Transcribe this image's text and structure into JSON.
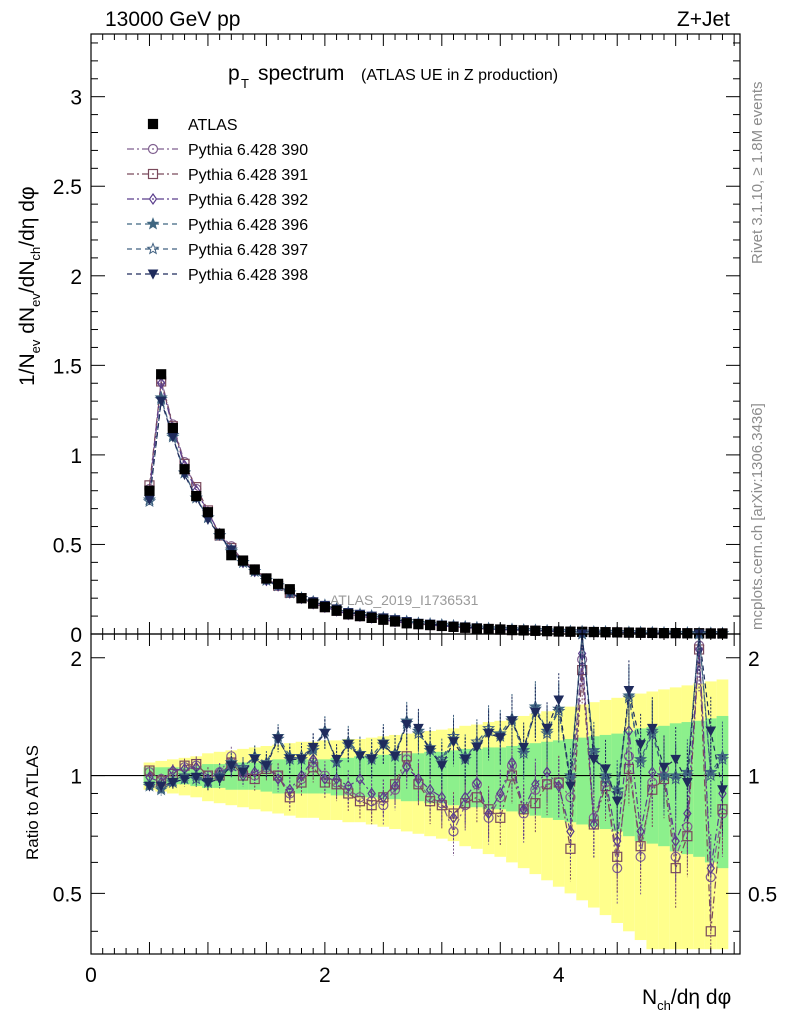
{
  "header": {
    "left": "13000 GeV pp",
    "right": "Z+Jet"
  },
  "side": {
    "rivet": "Rivet 3.1.10, ≥ 1.8M events",
    "mcplots": "mcplots.cern.ch [arXiv:1306.3436]"
  },
  "chart_data": {
    "type": "line",
    "title_main": "p",
    "title_sub": "T",
    "title_rest": "spectrum",
    "title_paren": "(ATLAS UE in Z production)",
    "watermark": "ATLAS_2019_I1736531",
    "ylabel_top": {
      "a": "1/N",
      "a_sub": "ev",
      "b": " dN",
      "b_sub": "ev",
      "c": "/dN",
      "c_sub": "ch",
      "d": "/dη dφ"
    },
    "ylabel_bottom": "Ratio to ATLAS",
    "xlabel": {
      "a": "N",
      "a_sub": "ch",
      "b": "/dη dφ"
    },
    "xlim": [
      0,
      5.55
    ],
    "ylim_top": [
      0,
      3.35
    ],
    "ylim_bottom": [
      0.35,
      2.3
    ],
    "x_ticks": [
      "0",
      "2",
      "4"
    ],
    "y_ticks_top": [
      "0",
      "0.5",
      "1",
      "1.5",
      "2",
      "2.5",
      "3"
    ],
    "y_ticks_bottom": [
      "0.5",
      "1",
      "2"
    ],
    "y_ticks_bottom_right": [
      "0.5",
      "1",
      "2"
    ],
    "x": [
      0.5,
      0.6,
      0.7,
      0.8,
      0.9,
      1.0,
      1.1,
      1.2,
      1.3,
      1.4,
      1.5,
      1.6,
      1.7,
      1.8,
      1.9,
      2.0,
      2.1,
      2.2,
      2.3,
      2.4,
      2.5,
      2.6,
      2.7,
      2.8,
      2.9,
      3.0,
      3.1,
      3.2,
      3.3,
      3.4,
      3.5,
      3.6,
      3.7,
      3.8,
      3.9,
      4.0,
      4.1,
      4.2,
      4.3,
      4.4,
      4.5,
      4.6,
      4.7,
      4.8,
      4.9,
      5.0,
      5.1,
      5.2,
      5.3,
      5.4
    ],
    "data_values": [
      0.8,
      1.45,
      1.15,
      0.92,
      0.77,
      0.68,
      0.56,
      0.44,
      0.41,
      0.36,
      0.31,
      0.28,
      0.25,
      0.2,
      0.17,
      0.15,
      0.13,
      0.11,
      0.1,
      0.09,
      0.08,
      0.07,
      0.06,
      0.055,
      0.05,
      0.045,
      0.04,
      0.035,
      0.03,
      0.028,
      0.025,
      0.022,
      0.02,
      0.018,
      0.016,
      0.014,
      0.013,
      0.012,
      0.011,
      0.01,
      0.009,
      0.008,
      0.007,
      0.006,
      0.005,
      0.005,
      0.004,
      0.004,
      0.003,
      0.003
    ],
    "band_green": [
      0.05,
      0.05,
      0.05,
      0.05,
      0.06,
      0.07,
      0.07,
      0.08,
      0.08,
      0.08,
      0.09,
      0.1,
      0.1,
      0.1,
      0.1,
      0.1,
      0.11,
      0.11,
      0.12,
      0.12,
      0.13,
      0.13,
      0.14,
      0.14,
      0.15,
      0.15,
      0.16,
      0.17,
      0.17,
      0.18,
      0.18,
      0.19,
      0.2,
      0.21,
      0.22,
      0.23,
      0.24,
      0.25,
      0.26,
      0.27,
      0.28,
      0.3,
      0.32,
      0.33,
      0.34,
      0.36,
      0.37,
      0.38,
      0.4,
      0.42
    ],
    "band_yellow": [
      0.08,
      0.09,
      0.1,
      0.11,
      0.12,
      0.14,
      0.15,
      0.16,
      0.17,
      0.18,
      0.19,
      0.2,
      0.21,
      0.22,
      0.22,
      0.23,
      0.23,
      0.24,
      0.24,
      0.25,
      0.26,
      0.27,
      0.28,
      0.29,
      0.3,
      0.31,
      0.32,
      0.34,
      0.35,
      0.37,
      0.38,
      0.4,
      0.42,
      0.44,
      0.46,
      0.48,
      0.5,
      0.52,
      0.54,
      0.56,
      0.58,
      0.6,
      0.62,
      0.64,
      0.66,
      0.68,
      0.7,
      0.72,
      0.74,
      0.76
    ],
    "legend": [
      {
        "name": "ATLAS",
        "marker": "filled-square",
        "color": "#000000"
      },
      {
        "name": "Pythia 6.428 390",
        "marker": "open-circle",
        "color": "#7f5f8f",
        "dash": "7 3 2 3"
      },
      {
        "name": "Pythia 6.428 391",
        "marker": "open-square",
        "color": "#7a4a5c",
        "dash": "7 3 2 3"
      },
      {
        "name": "Pythia 6.428 392",
        "marker": "open-diamond",
        "color": "#5a3d8c",
        "dash": "7 3 2 3"
      },
      {
        "name": "Pythia 6.428 396",
        "marker": "filled-star",
        "color": "#3f6680",
        "dash": "5 4"
      },
      {
        "name": "Pythia 6.428 397",
        "marker": "open-star",
        "color": "#406080",
        "dash": "5 4"
      },
      {
        "name": "Pythia 6.428 398",
        "marker": "filled-triangle-down",
        "color": "#1f2b5c",
        "dash": "5 4"
      }
    ],
    "series": [
      {
        "name": "Pythia 6.428 390",
        "values": [
          0.81,
          1.42,
          1.17,
          0.96,
          0.81,
          0.68,
          0.56,
          0.49,
          0.41,
          0.36,
          0.31,
          0.27,
          0.23,
          0.2,
          0.18,
          0.15,
          0.13,
          0.11,
          0.1,
          0.09,
          0.08,
          0.07,
          0.06,
          0.055,
          0.05,
          0.045,
          0.04,
          0.035,
          0.03,
          0.028,
          0.025,
          0.022,
          0.02,
          0.018,
          0.016,
          0.014,
          0.013,
          0.012,
          0.011,
          0.01,
          0.009,
          0.008,
          0.007,
          0.006,
          0.005,
          0.005,
          0.004,
          0.004,
          0.003,
          0.003
        ],
        "ratio": [
          1.02,
          0.98,
          1.02,
          1.05,
          1.06,
          1.0,
          1.02,
          1.12,
          1.02,
          1.0,
          1.05,
          1.0,
          0.9,
          0.98,
          1.08,
          1.0,
          0.96,
          0.92,
          0.88,
          0.86,
          0.84,
          0.92,
          1.1,
          0.96,
          0.88,
          0.85,
          0.72,
          0.84,
          0.95,
          0.78,
          0.88,
          1.06,
          0.8,
          0.92,
          0.95,
          0.96,
          0.88,
          1.98,
          0.78,
          0.96,
          0.58,
          1.12,
          0.62,
          0.96,
          1.04,
          0.62,
          0.74,
          2.15,
          0.55,
          0.8
        ]
      },
      {
        "name": "Pythia 6.428 391",
        "values": [
          0.83,
          1.41,
          1.16,
          0.95,
          0.82,
          0.69,
          0.55,
          0.48,
          0.41,
          0.36,
          0.31,
          0.27,
          0.23,
          0.2,
          0.17,
          0.15,
          0.13,
          0.11,
          0.1,
          0.09,
          0.08,
          0.07,
          0.06,
          0.055,
          0.05,
          0.045,
          0.04,
          0.035,
          0.03,
          0.028,
          0.025,
          0.022,
          0.02,
          0.018,
          0.016,
          0.014,
          0.013,
          0.012,
          0.011,
          0.01,
          0.009,
          0.008,
          0.007,
          0.006,
          0.005,
          0.005,
          0.004,
          0.004,
          0.003,
          0.003
        ],
        "ratio": [
          1.03,
          0.97,
          1.01,
          1.06,
          1.07,
          1.0,
          1.0,
          1.08,
          1.0,
          0.98,
          1.04,
          1.0,
          0.88,
          0.96,
          1.05,
          0.96,
          0.95,
          0.9,
          0.86,
          0.84,
          0.88,
          0.95,
          1.12,
          0.95,
          0.86,
          0.84,
          0.8,
          0.85,
          0.88,
          0.82,
          0.78,
          1.0,
          0.82,
          0.85,
          0.95,
          0.96,
          0.65,
          1.86,
          0.75,
          0.94,
          0.62,
          1.04,
          0.66,
          0.92,
          0.98,
          0.58,
          0.7,
          2.1,
          0.4,
          0.82
        ]
      },
      {
        "name": "Pythia 6.428 392",
        "values": [
          0.79,
          1.4,
          1.15,
          0.94,
          0.8,
          0.68,
          0.56,
          0.47,
          0.4,
          0.35,
          0.3,
          0.27,
          0.23,
          0.2,
          0.17,
          0.15,
          0.13,
          0.11,
          0.1,
          0.09,
          0.08,
          0.07,
          0.06,
          0.055,
          0.05,
          0.045,
          0.04,
          0.035,
          0.03,
          0.028,
          0.025,
          0.022,
          0.02,
          0.018,
          0.016,
          0.014,
          0.013,
          0.012,
          0.011,
          0.01,
          0.009,
          0.008,
          0.007,
          0.006,
          0.005,
          0.005,
          0.004,
          0.004,
          0.003,
          0.003
        ],
        "ratio": [
          0.99,
          0.96,
          1.03,
          1.04,
          1.05,
          0.98,
          1.02,
          1.05,
          1.0,
          1.02,
          1.06,
          0.98,
          0.92,
          1.0,
          1.1,
          0.98,
          0.98,
          0.94,
          0.98,
          0.9,
          0.88,
          0.94,
          1.05,
          0.98,
          0.92,
          0.88,
          0.78,
          0.88,
          0.96,
          0.8,
          0.9,
          1.08,
          0.82,
          0.95,
          1.02,
          0.94,
          0.72,
          2.05,
          0.75,
          0.98,
          0.68,
          1.3,
          0.72,
          1.02,
          1.0,
          0.68,
          0.8,
          2.1,
          0.58,
          0.9
        ]
      },
      {
        "name": "Pythia 6.428 396",
        "values": [
          0.75,
          1.32,
          1.1,
          0.9,
          0.76,
          0.65,
          0.55,
          0.47,
          0.4,
          0.35,
          0.3,
          0.27,
          0.23,
          0.2,
          0.18,
          0.16,
          0.14,
          0.12,
          0.11,
          0.1,
          0.09,
          0.08,
          0.07,
          0.06,
          0.055,
          0.05,
          0.045,
          0.04,
          0.035,
          0.03,
          0.028,
          0.025,
          0.022,
          0.02,
          0.018,
          0.016,
          0.014,
          0.013,
          0.012,
          0.011,
          0.01,
          0.009,
          0.008,
          0.007,
          0.006,
          0.005,
          0.005,
          0.004,
          0.004,
          0.003
        ],
        "ratio": [
          0.94,
          0.92,
          0.96,
          0.98,
          1.0,
          0.96,
          1.0,
          1.08,
          1.04,
          1.12,
          1.06,
          1.26,
          1.12,
          1.1,
          1.16,
          1.3,
          1.08,
          1.22,
          1.14,
          1.1,
          1.2,
          1.12,
          1.38,
          1.3,
          1.16,
          1.08,
          1.24,
          1.12,
          1.2,
          1.3,
          1.28,
          1.4,
          1.16,
          1.5,
          1.3,
          1.48,
          1.0,
          2.3,
          1.16,
          1.0,
          0.92,
          1.6,
          1.1,
          1.3,
          1.0,
          1.0,
          1.02,
          2.3,
          1.02,
          1.12
        ]
      },
      {
        "name": "Pythia 6.428 397",
        "values": [
          0.74,
          1.31,
          1.11,
          0.9,
          0.76,
          0.65,
          0.55,
          0.46,
          0.4,
          0.35,
          0.3,
          0.27,
          0.23,
          0.2,
          0.18,
          0.16,
          0.14,
          0.12,
          0.11,
          0.1,
          0.09,
          0.08,
          0.07,
          0.06,
          0.055,
          0.05,
          0.045,
          0.04,
          0.035,
          0.03,
          0.028,
          0.025,
          0.022,
          0.02,
          0.018,
          0.016,
          0.014,
          0.013,
          0.012,
          0.011,
          0.01,
          0.009,
          0.008,
          0.007,
          0.006,
          0.005,
          0.005,
          0.004,
          0.004,
          0.003
        ],
        "ratio": [
          0.95,
          0.93,
          0.97,
          1.0,
          0.98,
          0.97,
          1.0,
          1.06,
          1.05,
          1.12,
          1.08,
          1.24,
          1.1,
          1.12,
          1.18,
          1.3,
          1.08,
          1.2,
          1.14,
          1.12,
          1.22,
          1.14,
          1.36,
          1.28,
          1.18,
          1.1,
          1.26,
          1.1,
          1.22,
          1.32,
          1.26,
          1.38,
          1.14,
          1.48,
          1.28,
          1.46,
          0.98,
          2.3,
          1.14,
          0.98,
          0.9,
          1.58,
          1.08,
          1.28,
          1.0,
          0.98,
          1.0,
          2.3,
          1.0,
          1.1
        ]
      },
      {
        "name": "Pythia 6.428 398",
        "values": [
          0.75,
          1.3,
          1.1,
          0.89,
          0.76,
          0.64,
          0.55,
          0.47,
          0.4,
          0.35,
          0.3,
          0.27,
          0.23,
          0.2,
          0.18,
          0.16,
          0.14,
          0.12,
          0.11,
          0.1,
          0.09,
          0.08,
          0.07,
          0.06,
          0.055,
          0.05,
          0.045,
          0.04,
          0.035,
          0.03,
          0.028,
          0.025,
          0.022,
          0.02,
          0.018,
          0.016,
          0.014,
          0.013,
          0.012,
          0.011,
          0.01,
          0.009,
          0.008,
          0.007,
          0.006,
          0.005,
          0.005,
          0.004,
          0.004,
          0.003
        ],
        "ratio": [
          0.94,
          0.94,
          0.96,
          0.98,
          0.99,
          0.96,
          0.98,
          1.06,
          1.02,
          1.1,
          1.06,
          1.24,
          1.1,
          1.1,
          1.18,
          1.28,
          1.1,
          1.2,
          1.12,
          1.1,
          1.2,
          1.12,
          1.35,
          1.32,
          1.16,
          1.06,
          1.22,
          1.1,
          1.18,
          1.28,
          1.25,
          1.38,
          1.18,
          1.45,
          1.32,
          1.56,
          0.94,
          2.3,
          1.1,
          1.04,
          0.86,
          1.65,
          1.2,
          1.32,
          1.05,
          1.1,
          0.96,
          2.3,
          1.3,
          0.92
        ]
      }
    ]
  }
}
